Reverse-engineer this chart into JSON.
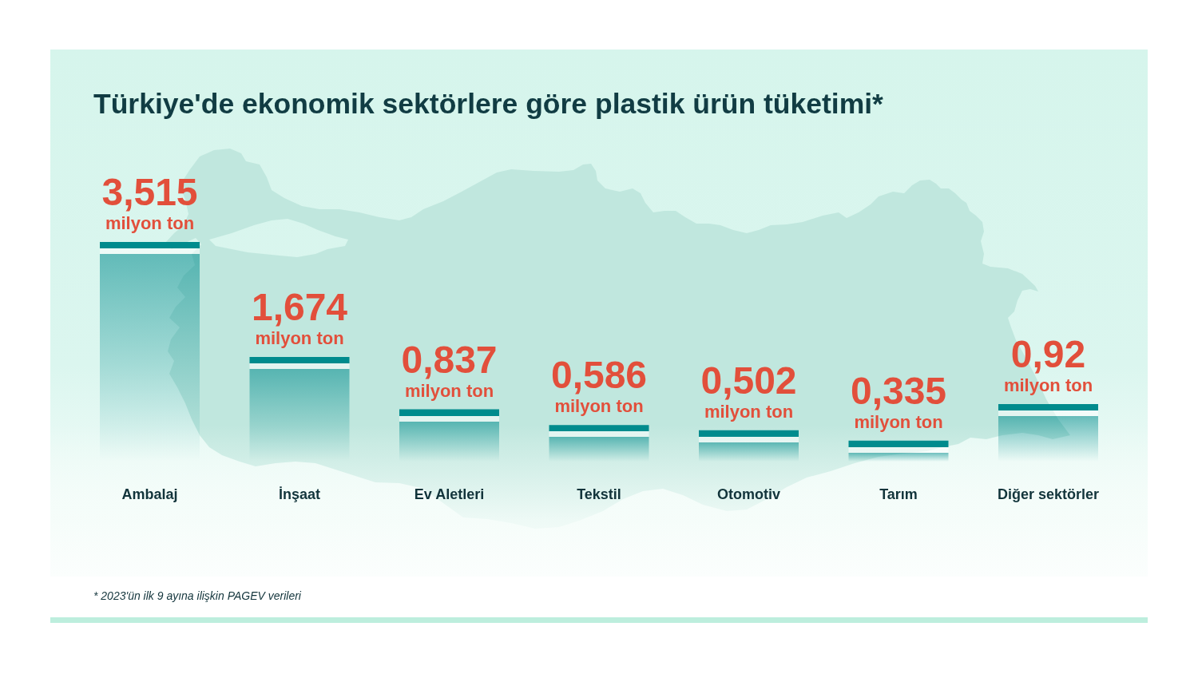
{
  "chart_data": {
    "type": "bar",
    "title": "Türkiye'de ekonomik sektörlere göre plastik ürün tüketimi*",
    "categories": [
      "Ambalaj",
      "İnşaat",
      "Ev Aletleri",
      "Tekstil",
      "Otomotiv",
      "Tarım",
      "Diğer sektörler"
    ],
    "values": [
      3.515,
      1.674,
      0.837,
      0.586,
      0.502,
      0.335,
      0.92
    ],
    "value_labels": [
      "3,515",
      "1,674",
      "0,837",
      "0,586",
      "0,502",
      "0,335",
      "0,92"
    ],
    "color": "#008b8d",
    "annotations": [
      {
        "text": "milyon ton",
        "x": "Ambalaj",
        "y": 3.515
      },
      {
        "text": "milyon ton",
        "x": "İnşaat",
        "y": 1.674
      },
      {
        "text": "milyon ton",
        "x": "Ev Aletleri",
        "y": 0.837
      },
      {
        "text": "milyon ton",
        "x": "Tekstil",
        "y": 0.586
      },
      {
        "text": "milyon ton",
        "x": "Otomotiv",
        "y": 0.502
      },
      {
        "text": "milyon ton",
        "x": "Tarım",
        "y": 0.335
      },
      {
        "text": "milyon ton",
        "x": "Diğer sektörler",
        "y": 0.92
      },
      "* 2023'ün ilk 9 ayına ilişkin PAGEV verileri"
    ]
  }
}
